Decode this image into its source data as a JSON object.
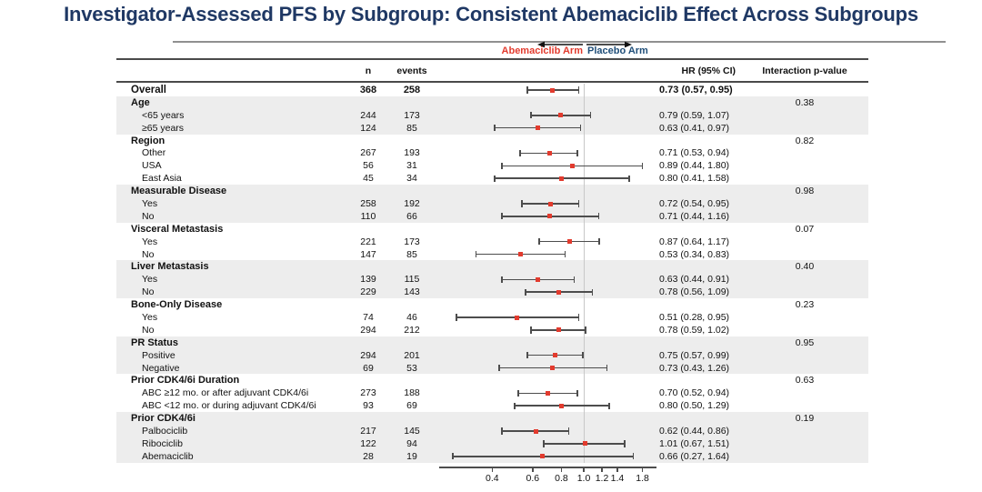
{
  "title": "Investigator-Assessed PFS by Subgroup: Consistent Abemaciclib Effect Across Subgroups",
  "colors": {
    "title_navy": "#1F3864",
    "abemaciclib_red": "#E23B2E",
    "placebo_blue": "#1F4E79",
    "marker_red": "#E23B2E",
    "whisker_gray": "#4D4D4D",
    "reference_line_gray": "#C8C8C8",
    "stripe_gray": "#EDEDED"
  },
  "legend": {
    "abemaciclib_label": "Abemaciclib Arm",
    "placebo_label": "Placebo Arm"
  },
  "columns": {
    "n": "n",
    "events": "events",
    "hr": "HR (95% CI)",
    "p": "Interaction p-value"
  },
  "chart_data": {
    "type": "forest",
    "title": "Investigator-Assessed PFS by Subgroup: Consistent Abemaciclib Effect Across Subgroups",
    "x_axis": {
      "scale": "log",
      "ticks": [
        "0.4",
        "0.6",
        "0.8",
        "1.0",
        "1.2",
        "1.4",
        "1.8"
      ],
      "reference_line": 1.0,
      "range": [
        0.23,
        2.05
      ],
      "direction_left": "Abemaciclib Arm",
      "direction_right": "Placebo Arm"
    },
    "rows": [
      {
        "kind": "overall",
        "label": "Overall",
        "n": "368",
        "events": "258",
        "hr": "0.73 (0.57, 0.95)",
        "est": 0.73,
        "lo": 0.57,
        "hi": 0.95,
        "shade": false
      },
      {
        "kind": "group",
        "label": "Age",
        "p": "0.38",
        "shade": true
      },
      {
        "kind": "item",
        "label": "<65 years",
        "n": "244",
        "events": "173",
        "hr": "0.79 (0.59, 1.07)",
        "est": 0.79,
        "lo": 0.59,
        "hi": 1.07,
        "shade": true
      },
      {
        "kind": "item",
        "label": "≥65 years",
        "n": "124",
        "events": "85",
        "hr": "0.63 (0.41, 0.97)",
        "est": 0.63,
        "lo": 0.41,
        "hi": 0.97,
        "shade": true
      },
      {
        "kind": "group",
        "label": "Region",
        "p": "0.82",
        "shade": false
      },
      {
        "kind": "item",
        "label": "Other",
        "n": "267",
        "events": "193",
        "hr": "0.71 (0.53, 0.94)",
        "est": 0.71,
        "lo": 0.53,
        "hi": 0.94,
        "shade": false
      },
      {
        "kind": "item",
        "label": "USA",
        "n": "56",
        "events": "31",
        "hr": "0.89 (0.44, 1.80)",
        "est": 0.89,
        "lo": 0.44,
        "hi": 1.8,
        "shade": false
      },
      {
        "kind": "item",
        "label": "East Asia",
        "n": "45",
        "events": "34",
        "hr": "0.80 (0.41, 1.58)",
        "est": 0.8,
        "lo": 0.41,
        "hi": 1.58,
        "shade": false
      },
      {
        "kind": "group",
        "label": "Measurable Disease",
        "p": "0.98",
        "shade": true
      },
      {
        "kind": "item",
        "label": "Yes",
        "n": "258",
        "events": "192",
        "hr": "0.72 (0.54, 0.95)",
        "est": 0.72,
        "lo": 0.54,
        "hi": 0.95,
        "shade": true
      },
      {
        "kind": "item",
        "label": "No",
        "n": "110",
        "events": "66",
        "hr": "0.71 (0.44, 1.16)",
        "est": 0.71,
        "lo": 0.44,
        "hi": 1.16,
        "shade": true
      },
      {
        "kind": "group",
        "label": "Visceral Metastasis",
        "p": "0.07",
        "shade": false
      },
      {
        "kind": "item",
        "label": "Yes",
        "n": "221",
        "events": "173",
        "hr": "0.87 (0.64, 1.17)",
        "est": 0.87,
        "lo": 0.64,
        "hi": 1.17,
        "shade": false
      },
      {
        "kind": "item",
        "label": "No",
        "n": "147",
        "events": "85",
        "hr": "0.53 (0.34, 0.83)",
        "est": 0.53,
        "lo": 0.34,
        "hi": 0.83,
        "shade": false
      },
      {
        "kind": "group",
        "label": "Liver Metastasis",
        "p": "0.40",
        "shade": true
      },
      {
        "kind": "item",
        "label": "Yes",
        "n": "139",
        "events": "115",
        "hr": "0.63 (0.44, 0.91)",
        "est": 0.63,
        "lo": 0.44,
        "hi": 0.91,
        "shade": true
      },
      {
        "kind": "item",
        "label": "No",
        "n": "229",
        "events": "143",
        "hr": "0.78 (0.56, 1.09)",
        "est": 0.78,
        "lo": 0.56,
        "hi": 1.09,
        "shade": true
      },
      {
        "kind": "group",
        "label": "Bone-Only Disease",
        "p": "0.23",
        "shade": false
      },
      {
        "kind": "item",
        "label": "Yes",
        "n": "74",
        "events": "46",
        "hr": "0.51 (0.28, 0.95)",
        "est": 0.51,
        "lo": 0.28,
        "hi": 0.95,
        "shade": false
      },
      {
        "kind": "item",
        "label": "No",
        "n": "294",
        "events": "212",
        "hr": "0.78 (0.59, 1.02)",
        "est": 0.78,
        "lo": 0.59,
        "hi": 1.02,
        "shade": false
      },
      {
        "kind": "group",
        "label": "PR Status",
        "p": "0.95",
        "shade": true
      },
      {
        "kind": "item",
        "label": "Positive",
        "n": "294",
        "events": "201",
        "hr": "0.75 (0.57, 0.99)",
        "est": 0.75,
        "lo": 0.57,
        "hi": 0.99,
        "shade": true
      },
      {
        "kind": "item",
        "label": "Negative",
        "n": "69",
        "events": "53",
        "hr": "0.73 (0.43, 1.26)",
        "est": 0.73,
        "lo": 0.43,
        "hi": 1.26,
        "shade": true
      },
      {
        "kind": "group",
        "label": "Prior CDK4/6i Duration",
        "p": "0.63",
        "shade": false
      },
      {
        "kind": "item",
        "label": "ABC ≥12 mo. or after adjuvant CDK4/6i",
        "n": "273",
        "events": "188",
        "hr": "0.70 (0.52, 0.94)",
        "est": 0.7,
        "lo": 0.52,
        "hi": 0.94,
        "shade": false
      },
      {
        "kind": "item",
        "label": "ABC <12 mo. or during adjuvant CDK4/6i",
        "n": "93",
        "events": "69",
        "hr": "0.80 (0.50, 1.29)",
        "est": 0.8,
        "lo": 0.5,
        "hi": 1.29,
        "shade": false
      },
      {
        "kind": "group",
        "label": "Prior CDK4/6i",
        "p": "0.19",
        "shade": true
      },
      {
        "kind": "item",
        "label": "Palbociclib",
        "n": "217",
        "events": "145",
        "hr": "0.62 (0.44, 0.86)",
        "est": 0.62,
        "lo": 0.44,
        "hi": 0.86,
        "shade": true
      },
      {
        "kind": "item",
        "label": "Ribociclib",
        "n": "122",
        "events": "94",
        "hr": "1.01 (0.67, 1.51)",
        "est": 1.01,
        "lo": 0.67,
        "hi": 1.51,
        "shade": true
      },
      {
        "kind": "item",
        "label": "Abemaciclib",
        "n": "28",
        "events": "19",
        "hr": "0.66 (0.27, 1.64)",
        "est": 0.66,
        "lo": 0.27,
        "hi": 1.64,
        "shade": true
      }
    ]
  }
}
